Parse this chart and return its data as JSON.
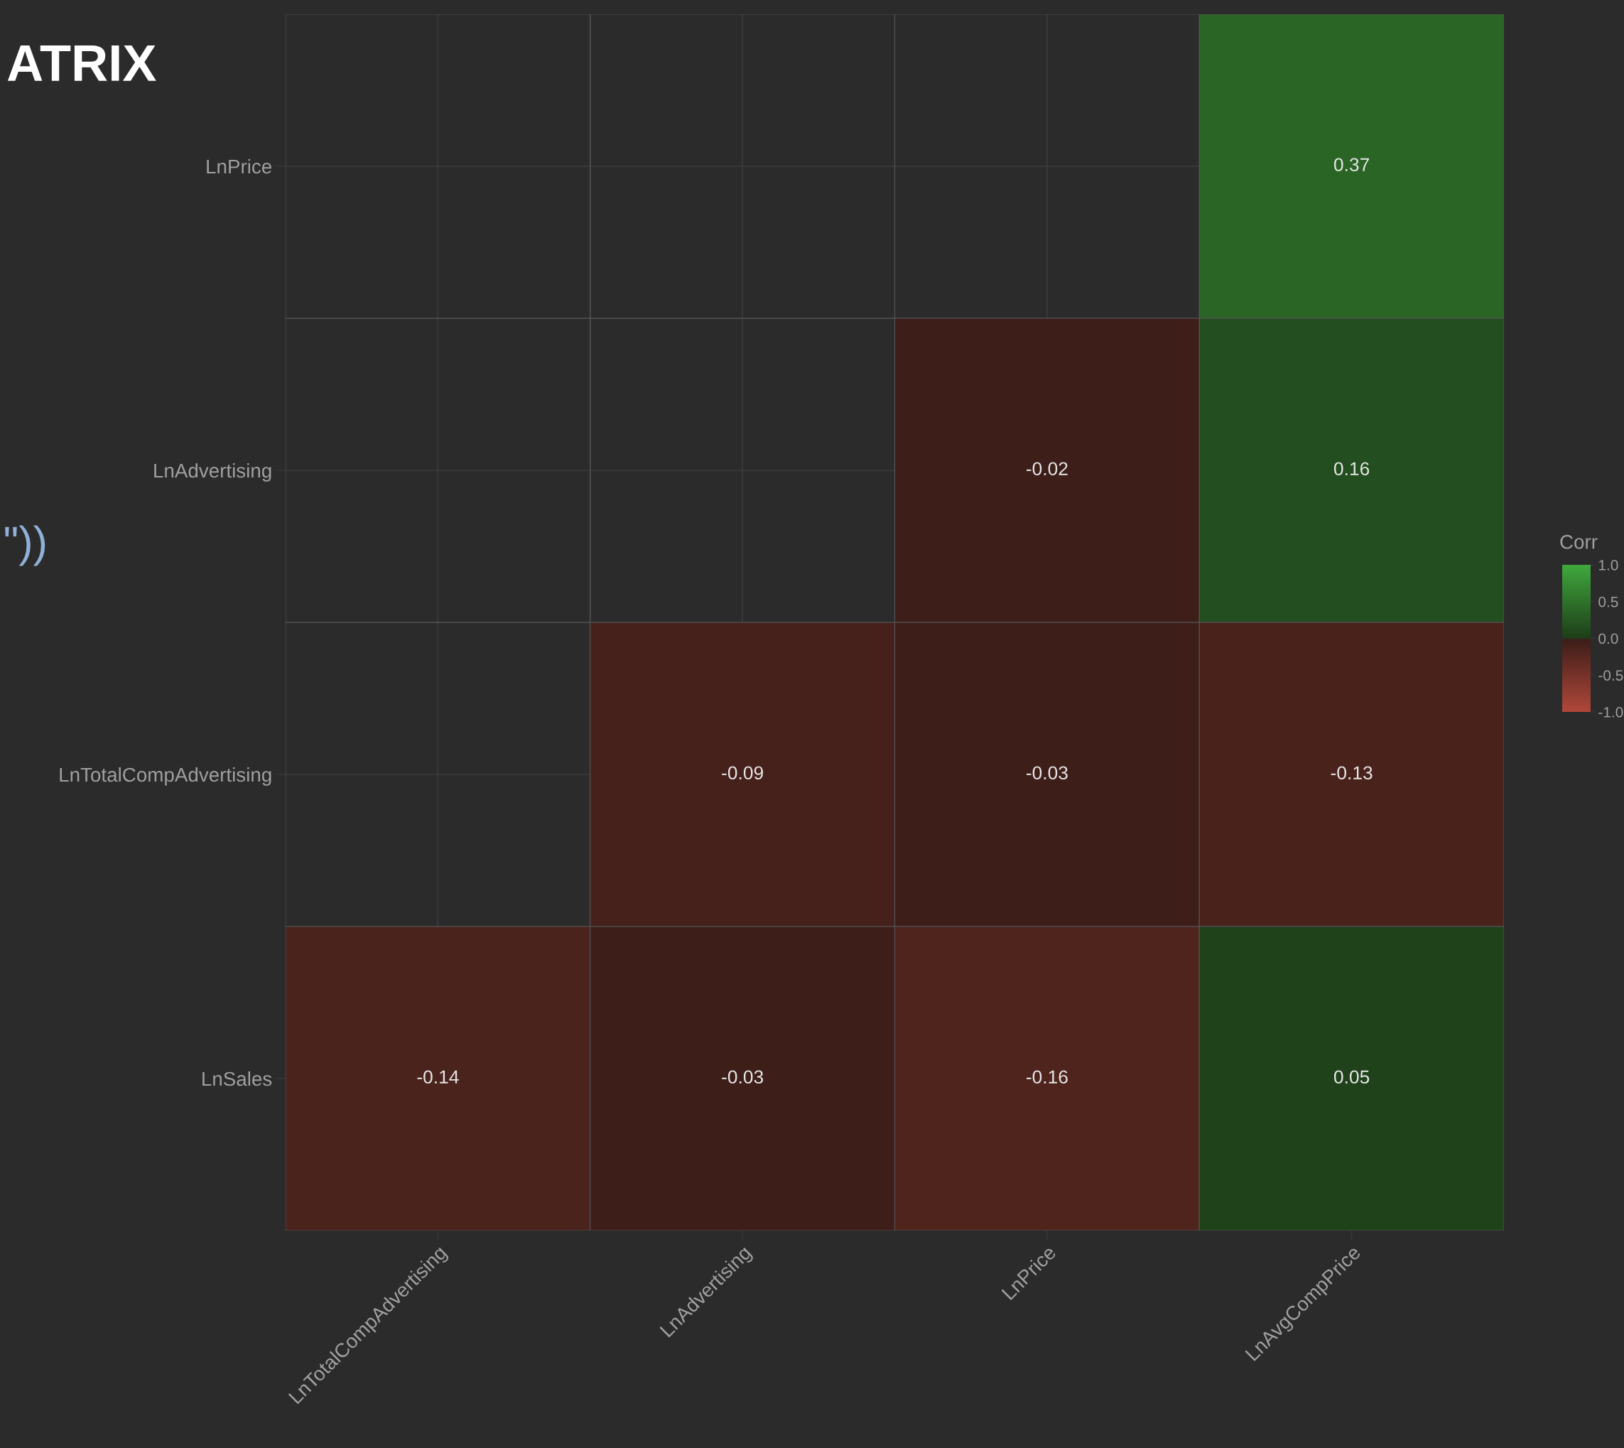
{
  "chart_data": {
    "type": "heatmap",
    "title": "ATRIX",
    "categories": [
      "LnTotalCompAdvertising",
      "LnAdvertising",
      "LnPrice",
      "LnAvgCompPrice"
    ],
    "y_categories": [
      "LnPrice",
      "LnAdvertising",
      "LnTotalCompAdvertising",
      "LnSales"
    ],
    "cells": [
      [
        null,
        null,
        null,
        0.37
      ],
      [
        null,
        null,
        -0.02,
        0.16
      ],
      [
        null,
        -0.09,
        -0.03,
        -0.13
      ],
      [
        -0.14,
        -0.03,
        -0.16,
        0.05
      ]
    ],
    "data_labels": true,
    "clabel": "Corr",
    "clim": [
      -1.0,
      1.0
    ],
    "cticks": [
      {
        "value": 1.0,
        "label": "1.0"
      },
      {
        "value": 0.5,
        "label": "0.5"
      },
      {
        "value": 0.0,
        "label": "0.0"
      },
      {
        "value": -0.5,
        "label": "-0.5"
      },
      {
        "value": -1.0,
        "label": "-1.0"
      }
    ],
    "grid": true,
    "annotations": [
      "\"))"
    ]
  }
}
